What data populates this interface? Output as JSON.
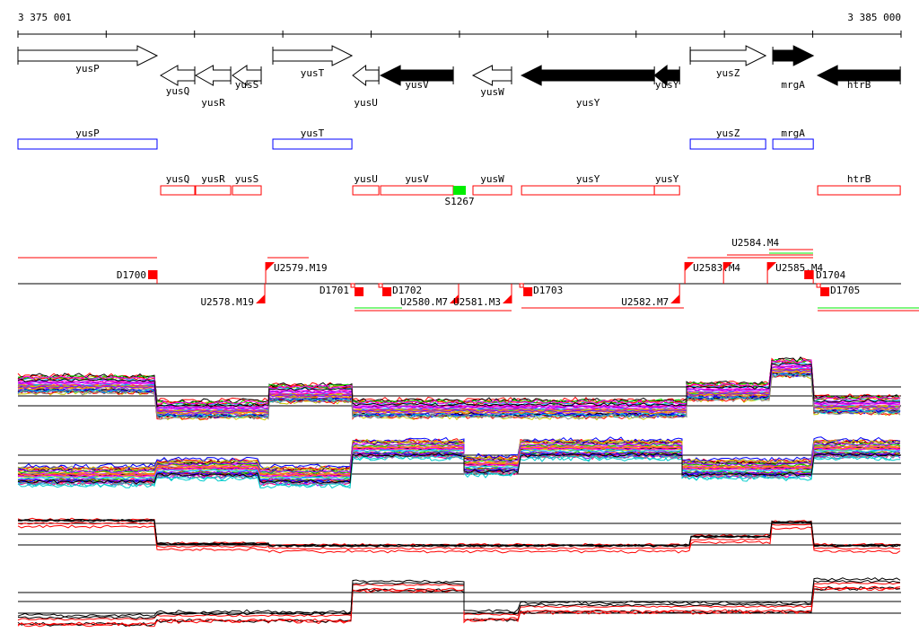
{
  "ruler": {
    "start_label": "3 375 001",
    "end_label": "3 385 000",
    "start_bp": 3375001,
    "end_bp": 3385000,
    "tick_step_bp": 1000
  },
  "genes": [
    {
      "name": "yusP",
      "start": 3375001,
      "end": 3376576,
      "strand": "+",
      "filled": false
    },
    {
      "name": "yusQ",
      "start": 3376617,
      "end": 3377003,
      "strand": "-",
      "filled": false
    },
    {
      "name": "yusR",
      "start": 3377013,
      "end": 3377410,
      "strand": "-",
      "filled": false
    },
    {
      "name": "yusS",
      "start": 3377430,
      "end": 3377755,
      "strand": "-",
      "filled": false
    },
    {
      "name": "yusT",
      "start": 3377887,
      "end": 3378782,
      "strand": "+",
      "filled": false
    },
    {
      "name": "yusU",
      "start": 3378792,
      "end": 3379087,
      "strand": "-",
      "filled": false
    },
    {
      "name": "yusV",
      "start": 3379107,
      "end": 3379930,
      "strand": "-",
      "filled": true
    },
    {
      "name": "yusW",
      "start": 3380153,
      "end": 3380590,
      "strand": "-",
      "filled": false
    },
    {
      "name": "yusY",
      "start": 3380703,
      "end": 3382207,
      "strand": "-",
      "filled": true
    },
    {
      "name": "yusY",
      "start": 3382207,
      "end": 3382492,
      "strand": "-",
      "filled": true
    },
    {
      "name": "yusZ",
      "start": 3382613,
      "end": 3383467,
      "strand": "+",
      "filled": false
    },
    {
      "name": "mrgA",
      "start": 3383548,
      "end": 3384006,
      "strand": "+",
      "filled": true
    },
    {
      "name": "htrB",
      "start": 3384056,
      "end": 3384991,
      "strand": "-",
      "filled": true
    }
  ],
  "forward_transcripts": [
    {
      "name": "yusP",
      "start": 3375001,
      "end": 3376576
    },
    {
      "name": "yusT",
      "start": 3377887,
      "end": 3378782
    },
    {
      "name": "yusZ",
      "start": 3382613,
      "end": 3383467
    },
    {
      "name": "mrgA",
      "start": 3383548,
      "end": 3384006
    }
  ],
  "reverse_transcripts": [
    {
      "name": "yusQ",
      "start": 3376617,
      "end": 3377003
    },
    {
      "name": "yusR",
      "start": 3377013,
      "end": 3377410
    },
    {
      "name": "yusS",
      "start": 3377430,
      "end": 3377755
    },
    {
      "name": "yusU",
      "start": 3378792,
      "end": 3379087
    },
    {
      "name": "yusV",
      "start": 3379107,
      "end": 3379930
    },
    {
      "name": "yusW",
      "start": 3380153,
      "end": 3380590
    },
    {
      "name": "yusY",
      "start": 3380703,
      "end": 3382207
    },
    {
      "name": "yusY",
      "start": 3382207,
      "end": 3382492
    },
    {
      "name": "htrB",
      "start": 3384056,
      "end": 3384991
    }
  ],
  "srna": {
    "name": "S1267",
    "start": 3379930,
    "end": 3380072,
    "color": "#00ee00"
  },
  "segments": [
    {
      "name": "D1700",
      "pos": 3376576,
      "type": "down",
      "strand": "+"
    },
    {
      "name": "U2579.M19",
      "pos": 3377806,
      "type": "up",
      "strand": "+"
    },
    {
      "name": "U2578.M19",
      "pos": 3377796,
      "type": "up",
      "strand": "-"
    },
    {
      "name": "D1701",
      "pos": 3378792,
      "type": "down",
      "strand": "-"
    },
    {
      "name": "D1702",
      "pos": 3379107,
      "type": "down",
      "strand": "-"
    },
    {
      "name": "U2580.M7",
      "pos": 3379990,
      "type": "up",
      "strand": "-"
    },
    {
      "name": "U2581.M3",
      "pos": 3380590,
      "type": "up",
      "strand": "-"
    },
    {
      "name": "D1703",
      "pos": 3380703,
      "type": "down",
      "strand": "-"
    },
    {
      "name": "U2582.M7",
      "pos": 3382492,
      "type": "up",
      "strand": "-"
    },
    {
      "name": "U2583.M4",
      "pos": 3382552,
      "type": "up",
      "strand": "+"
    },
    {
      "name": "U2584.M4",
      "pos": 3382990,
      "type": "up",
      "strand": "+"
    },
    {
      "name": "U2585.M4",
      "pos": 3383487,
      "type": "up",
      "strand": "+"
    },
    {
      "name": "D1704",
      "pos": 3384006,
      "type": "down",
      "strand": "+"
    },
    {
      "name": "D1705",
      "pos": 3384066,
      "type": "down",
      "strand": "-"
    }
  ],
  "colors": {
    "forward": "#0000ff",
    "reverse": "#ff0000",
    "srna": "#00ee00",
    "axis": "#000000"
  }
}
